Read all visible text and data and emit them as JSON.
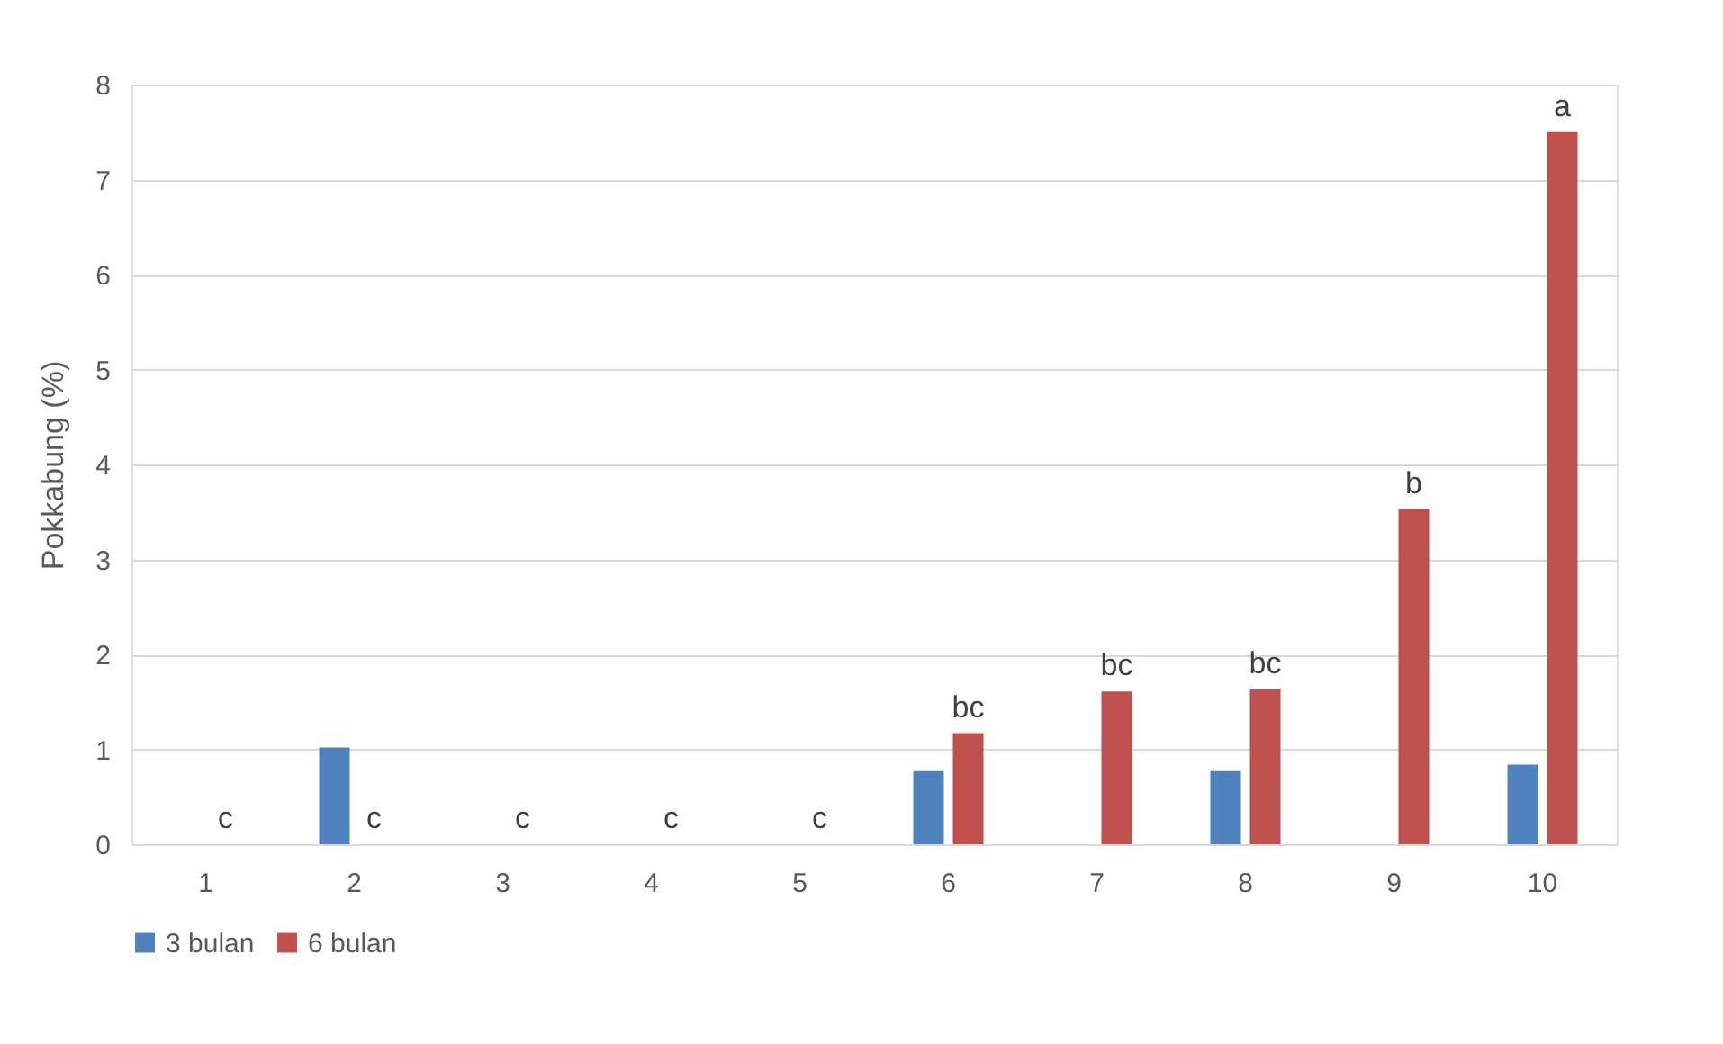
{
  "chart_data": {
    "type": "bar",
    "ylabel": "Pokkabung (%)",
    "categories": [
      "1",
      "2",
      "3",
      "4",
      "5",
      "6",
      "7",
      "8",
      "9",
      "10"
    ],
    "series": [
      {
        "name": "3 bulan",
        "color": "#4f81bd",
        "values": [
          0,
          1.02,
          0,
          0,
          0,
          0.77,
          0,
          0.77,
          0,
          0.84
        ]
      },
      {
        "name": "6 bulan",
        "color": "#c0504d",
        "values": [
          0,
          0,
          0,
          0,
          0,
          1.17,
          1.61,
          1.63,
          3.53,
          7.5
        ]
      }
    ],
    "ylim": [
      0,
      8
    ],
    "yticks": [
      0,
      1,
      2,
      3,
      4,
      5,
      6,
      7,
      8
    ],
    "grid": "y",
    "legend": "bottom",
    "annotations": [
      {
        "text": "c",
        "x": "1",
        "y": 0
      },
      {
        "text": "c",
        "x": "2",
        "y": 0
      },
      {
        "text": "c",
        "x": "3",
        "y": 0
      },
      {
        "text": "c",
        "x": "4",
        "y": 0
      },
      {
        "text": "c",
        "x": "5",
        "y": 0
      },
      {
        "text": "bc",
        "x": "6",
        "y": 1.17
      },
      {
        "text": "bc",
        "x": "7",
        "y": 1.61
      },
      {
        "text": "bc",
        "x": "8",
        "y": 1.63
      },
      {
        "text": "b",
        "x": "9",
        "y": 3.53
      },
      {
        "text": "a",
        "x": "10",
        "y": 7.5
      }
    ]
  }
}
